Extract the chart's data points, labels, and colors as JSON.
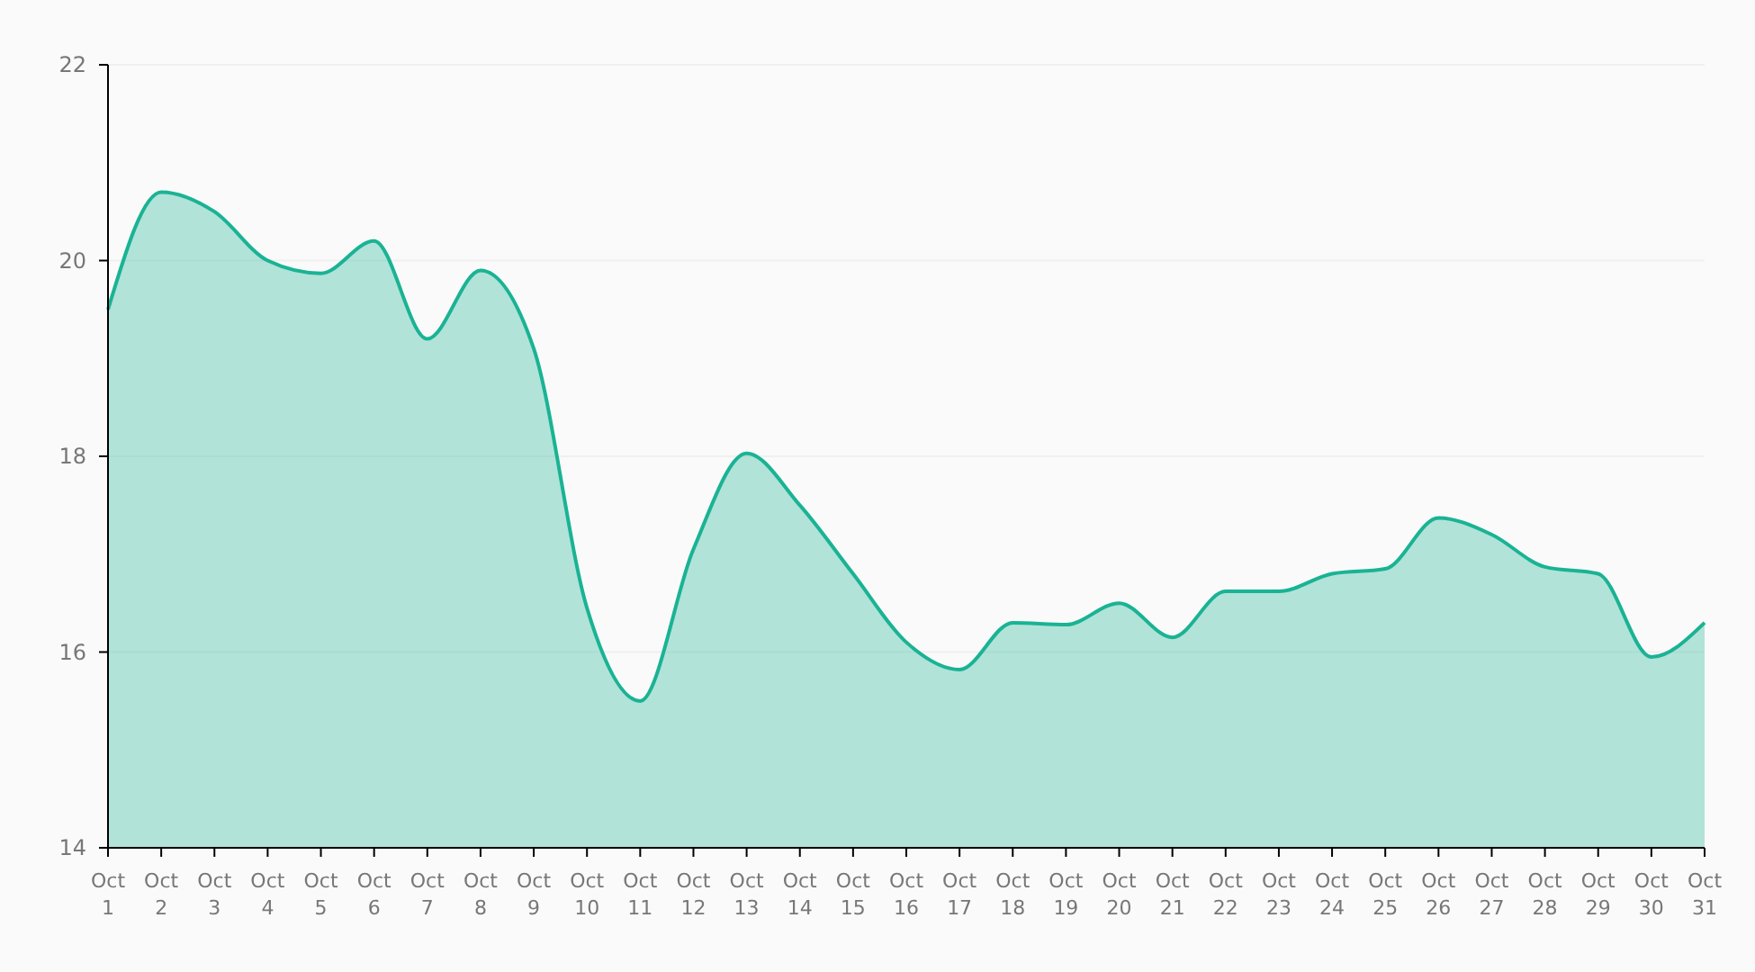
{
  "chart_data": {
    "type": "area",
    "categories": [
      "Oct 1",
      "Oct 2",
      "Oct 3",
      "Oct 4",
      "Oct 5",
      "Oct 6",
      "Oct 7",
      "Oct 8",
      "Oct 9",
      "Oct 10",
      "Oct 11",
      "Oct 12",
      "Oct 13",
      "Oct 14",
      "Oct 15",
      "Oct 16",
      "Oct 17",
      "Oct 18",
      "Oct 19",
      "Oct 20",
      "Oct 21",
      "Oct 22",
      "Oct 23",
      "Oct 24",
      "Oct 25",
      "Oct 26",
      "Oct 27",
      "Oct 28",
      "Oct 29",
      "Oct 30",
      "Oct 31"
    ],
    "series": [
      {
        "color": "#1ab394",
        "values": [
          19.5,
          20.7,
          20.5,
          20.0,
          19.87,
          20.2,
          19.2,
          19.9,
          19.1,
          16.45,
          15.5,
          17.05,
          18.03,
          17.5,
          16.8,
          16.1,
          15.82,
          16.3,
          16.28,
          16.5,
          16.15,
          16.62,
          16.62,
          16.8,
          16.85,
          17.37,
          17.2,
          16.87,
          16.8,
          15.95,
          16.3
        ]
      }
    ],
    "ylim": [
      14,
      22
    ],
    "yticks": [
      14,
      16,
      18,
      20,
      22
    ],
    "grid": "y"
  }
}
